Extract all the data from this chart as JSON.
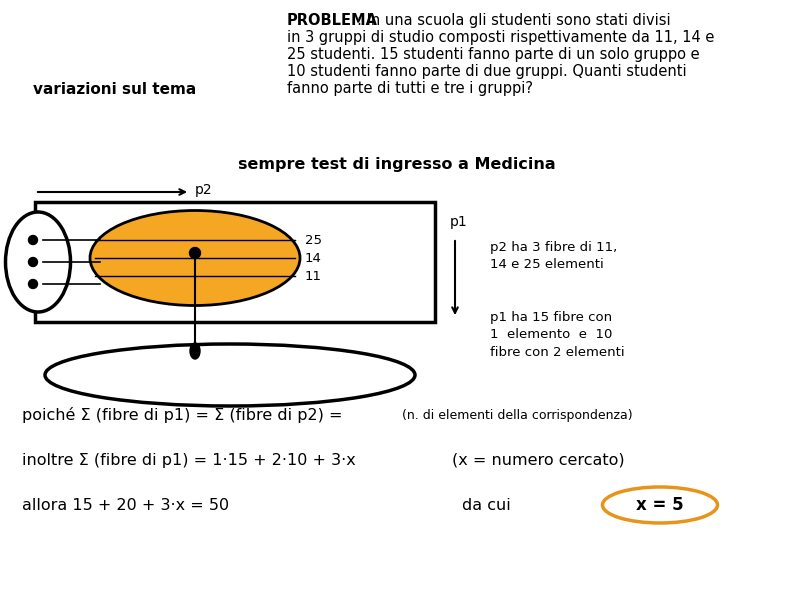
{
  "background_color": "#ffffff",
  "title_left": "variazioni sul tema",
  "problem_text_bold": "PROBLEMA",
  "problem_text_rest": " : In una scuola gli studenti sono stati divisi\nin 3 gruppi di studio composti rispettivamente da 11, 14 e\n25 studenti. 15 studenti fanno parte di un solo gruppo e\n10 studenti fanno parte di due gruppi. Quanti studenti\nfanno parte di tutti e tre i gruppi?",
  "subtitle": "sempre test di ingresso a Medicina",
  "p2_label": "p2",
  "p1_label": "p1",
  "numbers_in_shape": [
    "25",
    "14",
    "11"
  ],
  "right_text1a": "p2 ha 3 fibre di 11,",
  "right_text1b": "14 e 25 elementi",
  "right_text2a": "p1 ha 15 fibre con",
  "right_text2b": "1  elemento  e  10",
  "right_text2c": "fibre con 2 elementi",
  "formula1_part1": "poiché Σ (fibre di p1) = Σ (fibre di p2) = ",
  "formula1_part2": "(n. di elementi della corrispondenza)",
  "formula2_part1": "inoltre Σ (fibre di p1) = 1·15 + 2·10 + 3·x",
  "formula2_part2": "(x = numero cercato)",
  "formula3_part1": "allora 15 + 20 + 3·x = 50",
  "formula3_part2": "da cui",
  "answer": "x = 5",
  "orange_color": "#F5A623",
  "answer_ellipse_color": "#E8941A"
}
